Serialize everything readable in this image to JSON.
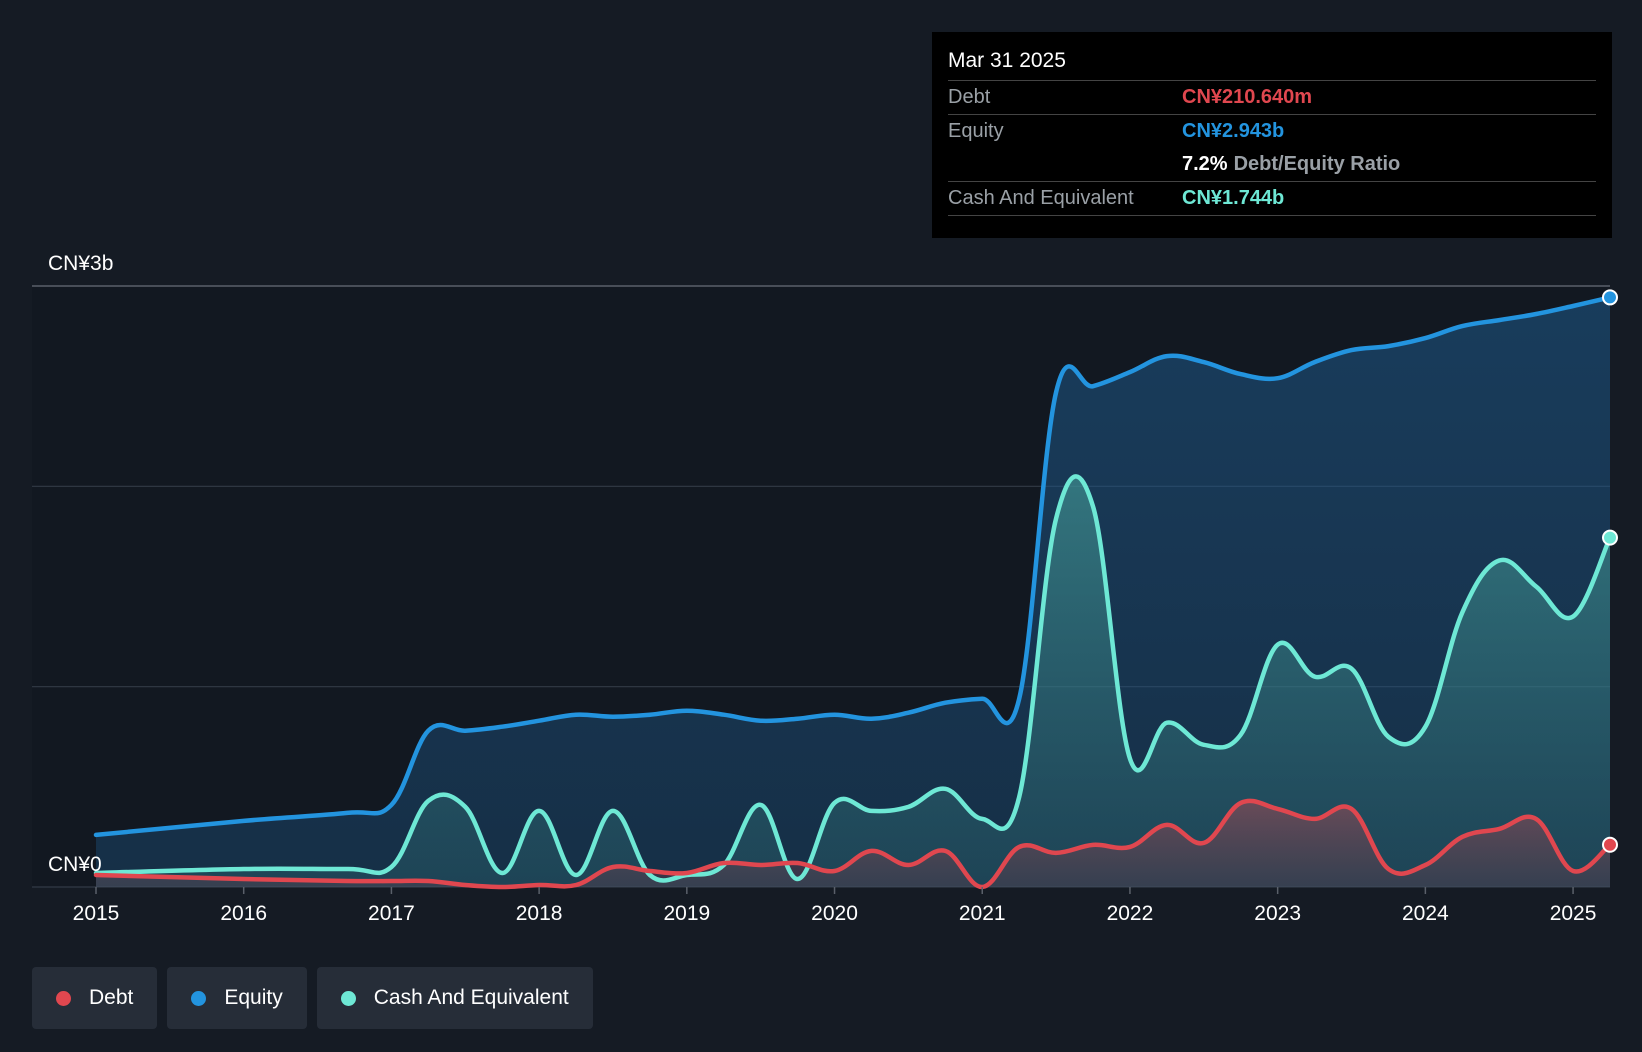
{
  "colors": {
    "background": "#151b24",
    "debt": "#e0474f",
    "equity": "#2394df",
    "cash": "#6ee8d5"
  },
  "tooltip": {
    "date": "Mar 31 2025",
    "debt_label": "Debt",
    "debt_value": "CN¥210.640m",
    "equity_label": "Equity",
    "equity_value": "CN¥2.943b",
    "ratio_value": "7.2%",
    "ratio_label": "Debt/Equity Ratio",
    "cash_label": "Cash And Equivalent",
    "cash_value": "CN¥1.744b"
  },
  "legend": [
    {
      "label": "Debt",
      "color": "#e0474f"
    },
    {
      "label": "Equity",
      "color": "#2394df"
    },
    {
      "label": "Cash And Equivalent",
      "color": "#6ee8d5"
    }
  ],
  "chart_data": {
    "type": "area",
    "y_top_label": "CN¥3b",
    "y_bottom_label": "CN¥0",
    "ylim": [
      0,
      3.0
    ],
    "xlim": [
      2015.0,
      2025.25
    ],
    "x_ticks": [
      2015,
      2016,
      2017,
      2018,
      2019,
      2020,
      2021,
      2022,
      2023,
      2024,
      2025
    ],
    "x_tick_labels": [
      "2015",
      "2016",
      "2017",
      "2018",
      "2019",
      "2020",
      "2021",
      "2022",
      "2023",
      "2024",
      "2025"
    ],
    "grid": true,
    "unit": "CN¥ billions",
    "series": [
      {
        "name": "Equity",
        "points": [
          [
            2015.0,
            0.26
          ],
          [
            2016.0,
            0.33
          ],
          [
            2016.7,
            0.37
          ],
          [
            2017.0,
            0.41
          ],
          [
            2017.25,
            0.78
          ],
          [
            2017.5,
            0.78
          ],
          [
            2017.75,
            0.8
          ],
          [
            2018.0,
            0.83
          ],
          [
            2018.25,
            0.86
          ],
          [
            2018.5,
            0.85
          ],
          [
            2018.75,
            0.86
          ],
          [
            2019.0,
            0.88
          ],
          [
            2019.25,
            0.86
          ],
          [
            2019.5,
            0.83
          ],
          [
            2019.75,
            0.84
          ],
          [
            2020.0,
            0.86
          ],
          [
            2020.25,
            0.84
          ],
          [
            2020.5,
            0.87
          ],
          [
            2020.75,
            0.92
          ],
          [
            2021.0,
            0.94
          ],
          [
            2021.25,
            0.94
          ],
          [
            2021.5,
            2.47
          ],
          [
            2021.75,
            2.5
          ],
          [
            2022.0,
            2.57
          ],
          [
            2022.25,
            2.65
          ],
          [
            2022.5,
            2.62
          ],
          [
            2022.75,
            2.56
          ],
          [
            2023.0,
            2.54
          ],
          [
            2023.25,
            2.62
          ],
          [
            2023.5,
            2.68
          ],
          [
            2023.75,
            2.7
          ],
          [
            2024.0,
            2.74
          ],
          [
            2024.25,
            2.8
          ],
          [
            2024.5,
            2.83
          ],
          [
            2024.75,
            2.86
          ],
          [
            2025.0,
            2.9
          ],
          [
            2025.25,
            2.943
          ]
        ]
      },
      {
        "name": "Cash And Equivalent",
        "points": [
          [
            2015.0,
            0.07
          ],
          [
            2016.0,
            0.09
          ],
          [
            2016.7,
            0.09
          ],
          [
            2017.0,
            0.1
          ],
          [
            2017.25,
            0.43
          ],
          [
            2017.5,
            0.4
          ],
          [
            2017.75,
            0.07
          ],
          [
            2018.0,
            0.38
          ],
          [
            2018.25,
            0.06
          ],
          [
            2018.5,
            0.38
          ],
          [
            2018.75,
            0.06
          ],
          [
            2019.0,
            0.06
          ],
          [
            2019.25,
            0.11
          ],
          [
            2019.5,
            0.41
          ],
          [
            2019.75,
            0.04
          ],
          [
            2020.0,
            0.42
          ],
          [
            2020.25,
            0.38
          ],
          [
            2020.5,
            0.4
          ],
          [
            2020.75,
            0.49
          ],
          [
            2021.0,
            0.34
          ],
          [
            2021.25,
            0.45
          ],
          [
            2021.5,
            1.84
          ],
          [
            2021.75,
            1.9
          ],
          [
            2022.0,
            0.64
          ],
          [
            2022.25,
            0.82
          ],
          [
            2022.5,
            0.71
          ],
          [
            2022.75,
            0.76
          ],
          [
            2023.0,
            1.21
          ],
          [
            2023.25,
            1.05
          ],
          [
            2023.5,
            1.09
          ],
          [
            2023.75,
            0.75
          ],
          [
            2024.0,
            0.8
          ],
          [
            2024.25,
            1.37
          ],
          [
            2024.5,
            1.63
          ],
          [
            2024.75,
            1.5
          ],
          [
            2025.0,
            1.35
          ],
          [
            2025.25,
            1.744
          ]
        ]
      },
      {
        "name": "Debt",
        "points": [
          [
            2015.0,
            0.06
          ],
          [
            2016.0,
            0.04
          ],
          [
            2016.7,
            0.03
          ],
          [
            2017.0,
            0.03
          ],
          [
            2017.25,
            0.03
          ],
          [
            2017.5,
            0.01
          ],
          [
            2017.75,
            0.0
          ],
          [
            2018.0,
            0.01
          ],
          [
            2018.25,
            0.01
          ],
          [
            2018.5,
            0.1
          ],
          [
            2018.75,
            0.08
          ],
          [
            2019.0,
            0.07
          ],
          [
            2019.25,
            0.12
          ],
          [
            2019.5,
            0.11
          ],
          [
            2019.75,
            0.12
          ],
          [
            2020.0,
            0.08
          ],
          [
            2020.25,
            0.18
          ],
          [
            2020.5,
            0.11
          ],
          [
            2020.75,
            0.18
          ],
          [
            2021.0,
            0.0
          ],
          [
            2021.25,
            0.2
          ],
          [
            2021.5,
            0.17
          ],
          [
            2021.75,
            0.21
          ],
          [
            2022.0,
            0.2
          ],
          [
            2022.25,
            0.31
          ],
          [
            2022.5,
            0.22
          ],
          [
            2022.75,
            0.42
          ],
          [
            2023.0,
            0.39
          ],
          [
            2023.25,
            0.34
          ],
          [
            2023.5,
            0.39
          ],
          [
            2023.75,
            0.09
          ],
          [
            2024.0,
            0.11
          ],
          [
            2024.25,
            0.25
          ],
          [
            2024.5,
            0.29
          ],
          [
            2024.75,
            0.34
          ],
          [
            2025.0,
            0.08
          ],
          [
            2025.25,
            0.211
          ]
        ]
      }
    ]
  }
}
